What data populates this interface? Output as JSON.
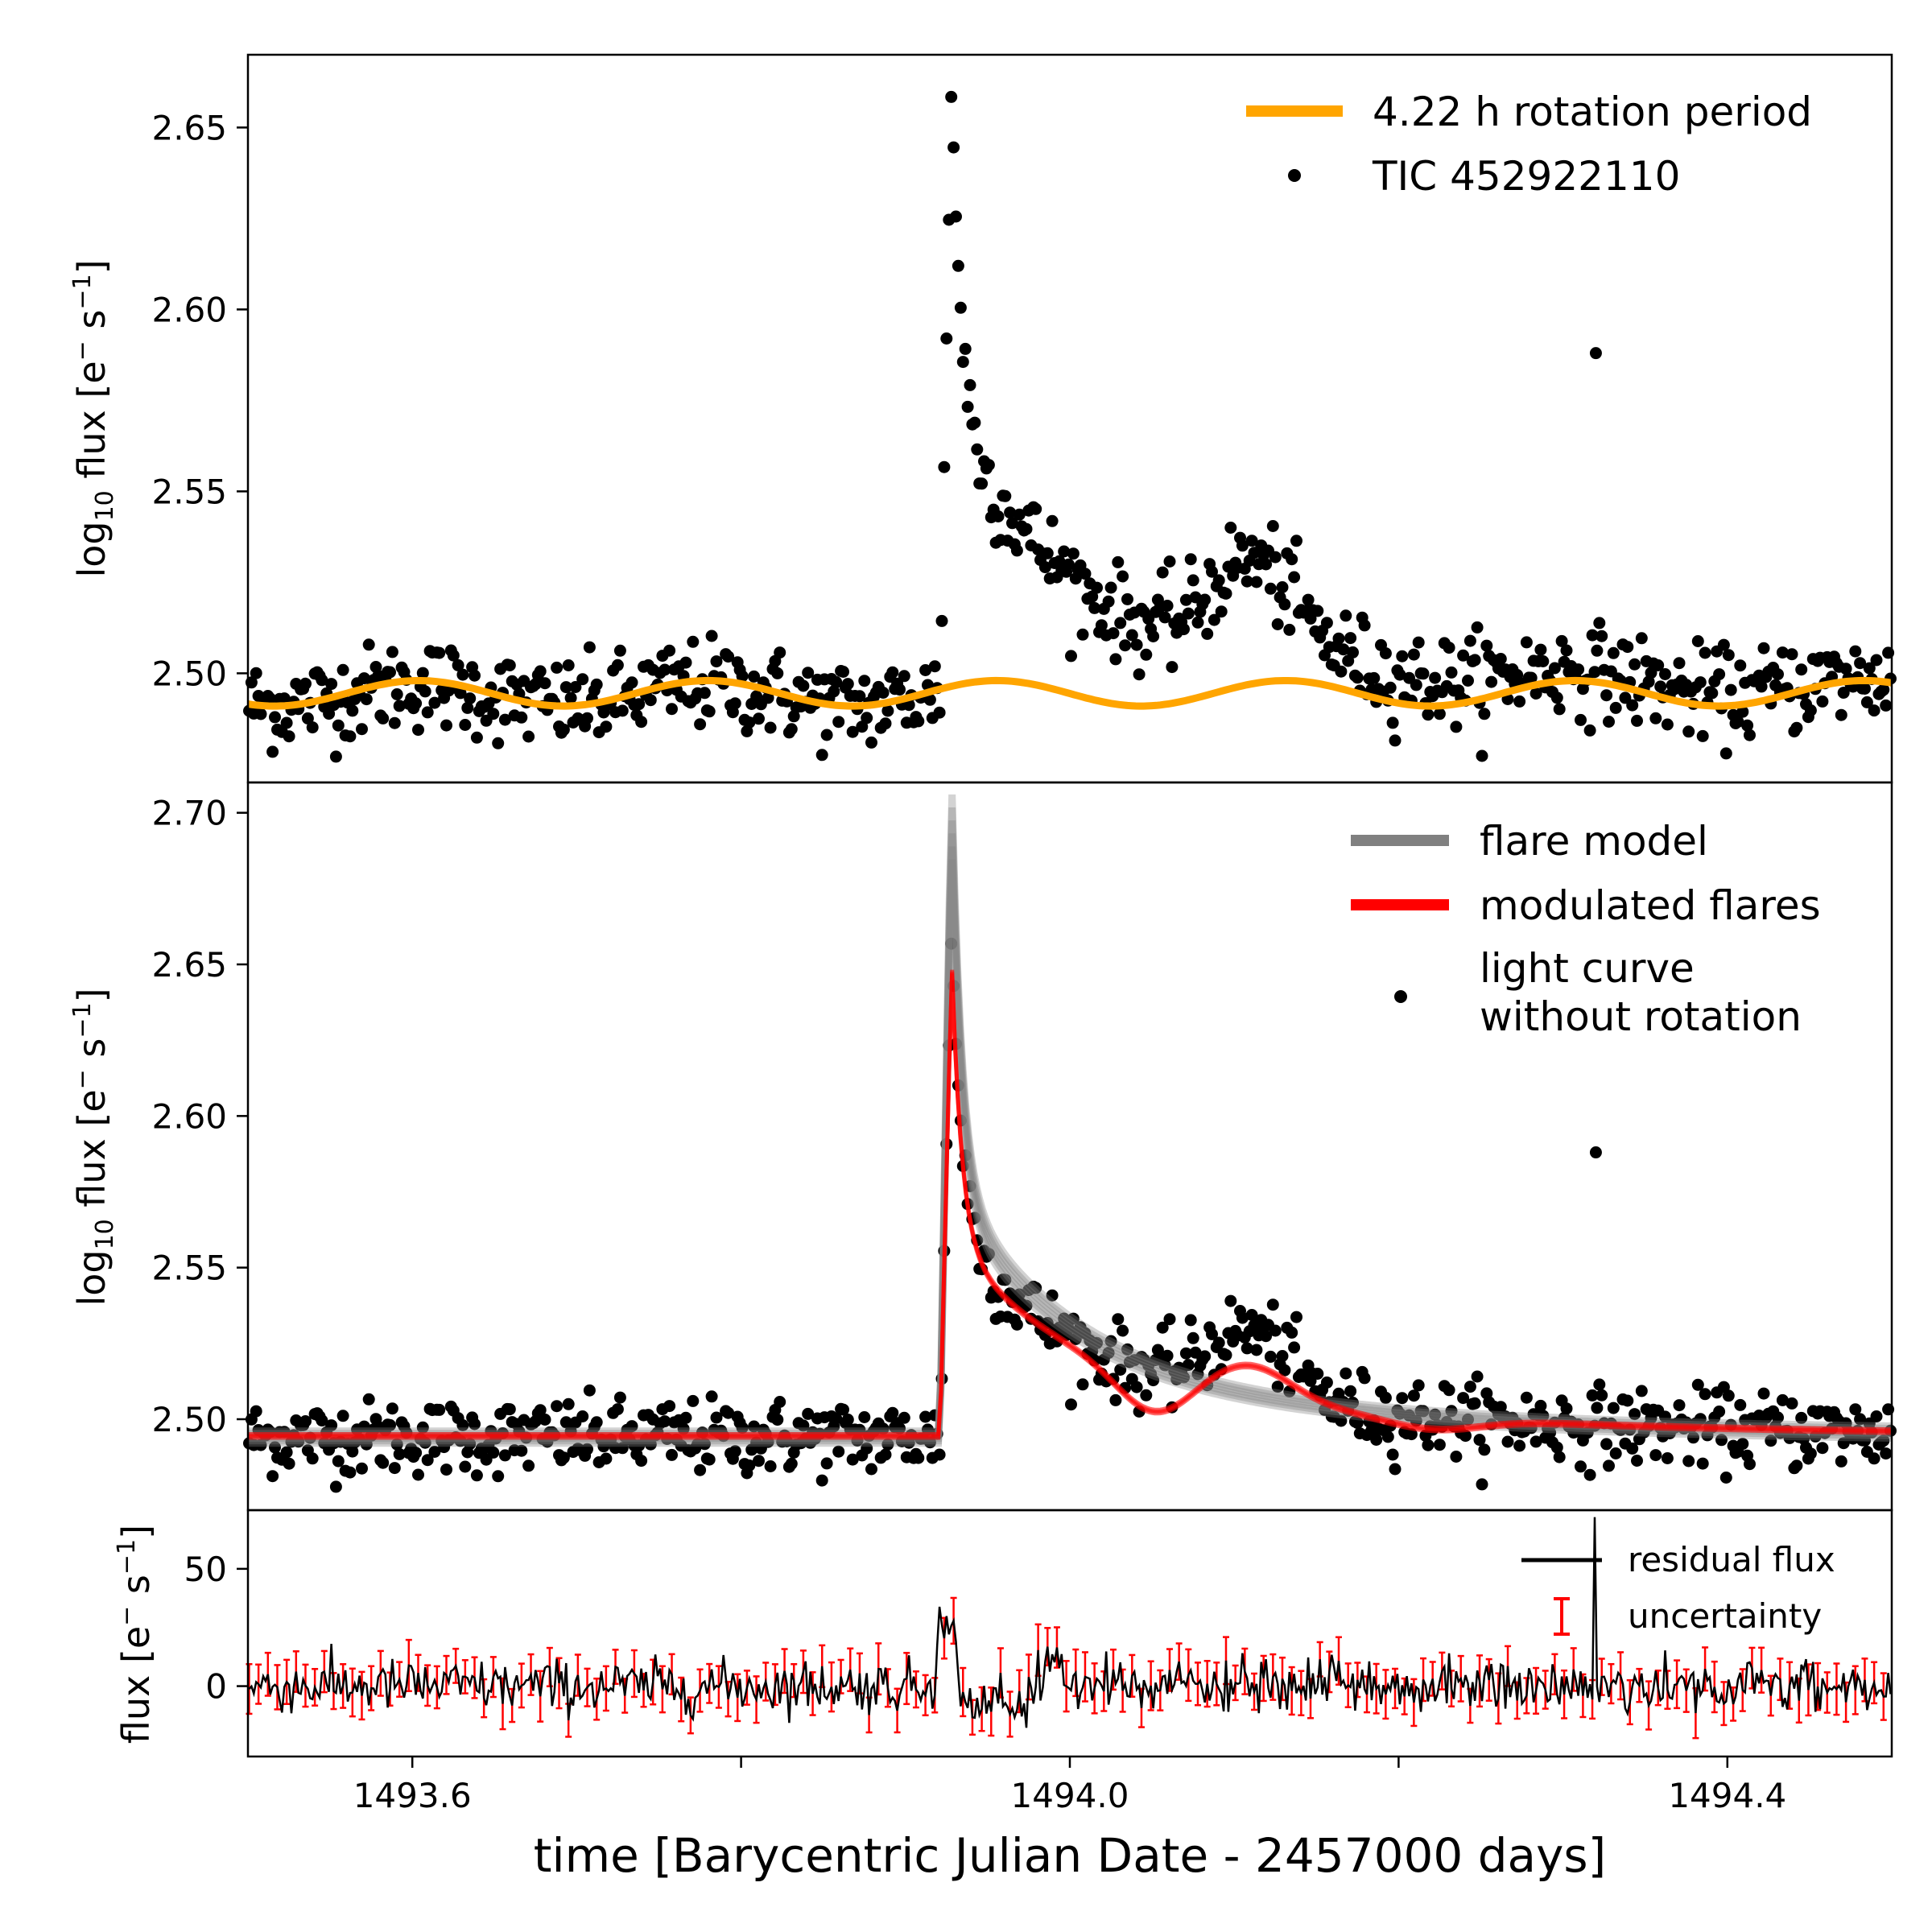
{
  "chart_data": [
    {
      "type": "scatter",
      "panel": "top",
      "ylabel_prefix": "log",
      "ylabel_sub": "10",
      "ylabel_main": " flux [e",
      "ylabel_sup1": "−",
      "ylabel_mid": " s",
      "ylabel_sup2": "−1",
      "ylabel_close": "]",
      "xlim": [
        1493.5,
        1494.5
      ],
      "ylim": [
        2.47,
        2.67
      ],
      "yticks": [
        2.5,
        2.55,
        2.6,
        2.65
      ],
      "ytick_labels": [
        "2.50",
        "2.55",
        "2.60",
        "2.65"
      ],
      "legend": [
        {
          "label": "4.22 h rotation period",
          "color": "#ffa500"
        },
        {
          "label": "TIC 452922110",
          "color": "#000000"
        }
      ],
      "series": [
        {
          "name": "TIC 452922110",
          "kind": "points",
          "baseline": 2.494,
          "noise": 0.0065,
          "flare": {
            "t_peak": 1493.928,
            "amplitude": 0.155,
            "decay_fast": 0.006,
            "decay_slow": 0.045,
            "slow_amp": 0.05
          },
          "bump": {
            "t_center": 1494.11,
            "amplitude": 0.022,
            "width": 0.035
          },
          "outlier": {
            "x": 1494.32,
            "y": 2.588
          }
        },
        {
          "name": "4.22 h rotation period",
          "kind": "line",
          "color": "#ffa500",
          "baseline": 2.4945,
          "amplitude": 0.0035,
          "period_days": 0.1758
        }
      ]
    },
    {
      "type": "scatter",
      "panel": "middle",
      "xlim": [
        1493.5,
        1494.5
      ],
      "ylim": [
        2.47,
        2.71
      ],
      "yticks": [
        2.5,
        2.55,
        2.6,
        2.65,
        2.7
      ],
      "ytick_labels": [
        "2.50",
        "2.55",
        "2.60",
        "2.65",
        "2.70"
      ],
      "legend": [
        {
          "label": "flare model",
          "color": "#808080"
        },
        {
          "label": "modulated flares",
          "color": "#ff0000"
        },
        {
          "label": "light curve",
          "label2": "without rotation",
          "color": "#000000"
        }
      ],
      "series": [
        {
          "name": "light curve without rotation",
          "kind": "points",
          "baseline": 2.494,
          "noise": 0.0065,
          "outlier": {
            "x": 1494.32,
            "y": 2.588
          }
        },
        {
          "name": "flare model",
          "kind": "line",
          "color": "#808080",
          "t_start": 1493.921,
          "t_peak": 1493.928,
          "peak": 2.69,
          "baseline": 2.494
        },
        {
          "name": "modulated flares",
          "kind": "line",
          "color": "#ff0000",
          "t_start": 1493.921,
          "t_peak": 1493.928,
          "peak": 2.655,
          "baseline": 2.494
        }
      ]
    },
    {
      "type": "line",
      "panel": "bottom",
      "ylabel_main": "flux [e",
      "ylabel_sup1": "−",
      "ylabel_mid": " s",
      "ylabel_sup2": "−1",
      "ylabel_close": "]",
      "xlabel": "time [Barycentric Julian Date - 2457000 days]",
      "xlim": [
        1493.5,
        1494.5
      ],
      "ylim": [
        -30,
        75
      ],
      "yticks": [
        0,
        50
      ],
      "ytick_labels": [
        "0",
        "50"
      ],
      "xticks": [
        1493.6,
        1493.8,
        1494.0,
        1494.2,
        1494.4
      ],
      "xtick_labels": [
        "1493.6",
        "",
        "1494.0",
        "",
        "1494.4"
      ],
      "legend": [
        {
          "label": "residual flux",
          "color": "#000000"
        },
        {
          "label": "uncertainty",
          "color": "#ff0000"
        }
      ],
      "series": [
        {
          "name": "residual flux",
          "kind": "line",
          "color": "#000000",
          "noise": 5.5,
          "spike": {
            "x": 1494.32,
            "y": 70
          },
          "bump": {
            "x": 1493.925,
            "y": 35
          }
        },
        {
          "name": "uncertainty",
          "kind": "errorbars",
          "color": "#ff0000",
          "typical": 8
        }
      ]
    }
  ]
}
